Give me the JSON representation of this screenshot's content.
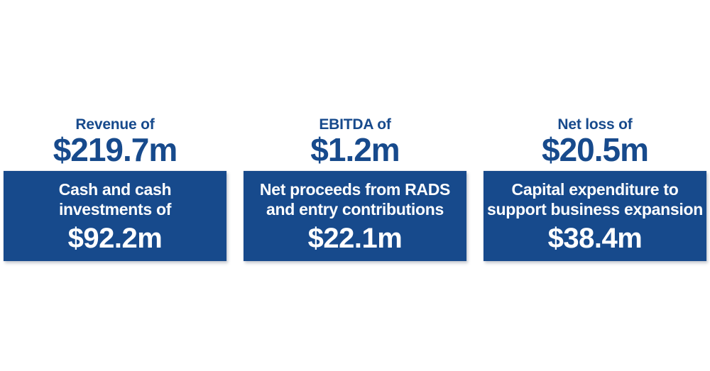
{
  "theme": {
    "brand_blue": "#174A8C",
    "panel_text_color": "#FFFFFF",
    "page_background": "#FFFFFF"
  },
  "metrics": [
    {
      "header_label": "Revenue of",
      "header_value": "$219.7m",
      "panel_lines": [
        "Cash and cash",
        "investments of"
      ],
      "panel_value": "$92.2m"
    },
    {
      "header_label": "EBITDA of",
      "header_value": "$1.2m",
      "panel_lines": [
        "Net proceeds from RADS",
        "and entry contributions"
      ],
      "panel_value": "$22.1m"
    },
    {
      "header_label": "Net loss of",
      "header_value": "$20.5m",
      "panel_lines": [
        "Capital expenditure to",
        "support business expansion"
      ],
      "panel_value": "$38.4m"
    }
  ],
  "chart_data": {
    "type": "table",
    "unit": "$m (millions)",
    "items": [
      {
        "label": "Revenue of",
        "value": "$219.7m",
        "value_millions": 219.7
      },
      {
        "label": "Cash and cash investments of",
        "value": "$92.2m",
        "value_millions": 92.2
      },
      {
        "label": "EBITDA of",
        "value": "$1.2m",
        "value_millions": 1.2
      },
      {
        "label": "Net proceeds from RADS and entry contributions",
        "value": "$22.1m",
        "value_millions": 22.1
      },
      {
        "label": "Net loss of",
        "value": "$20.5m",
        "value_millions": 20.5
      },
      {
        "label": "Capital expenditure to support business expansion",
        "value": "$38.4m",
        "value_millions": 38.4
      }
    ]
  }
}
